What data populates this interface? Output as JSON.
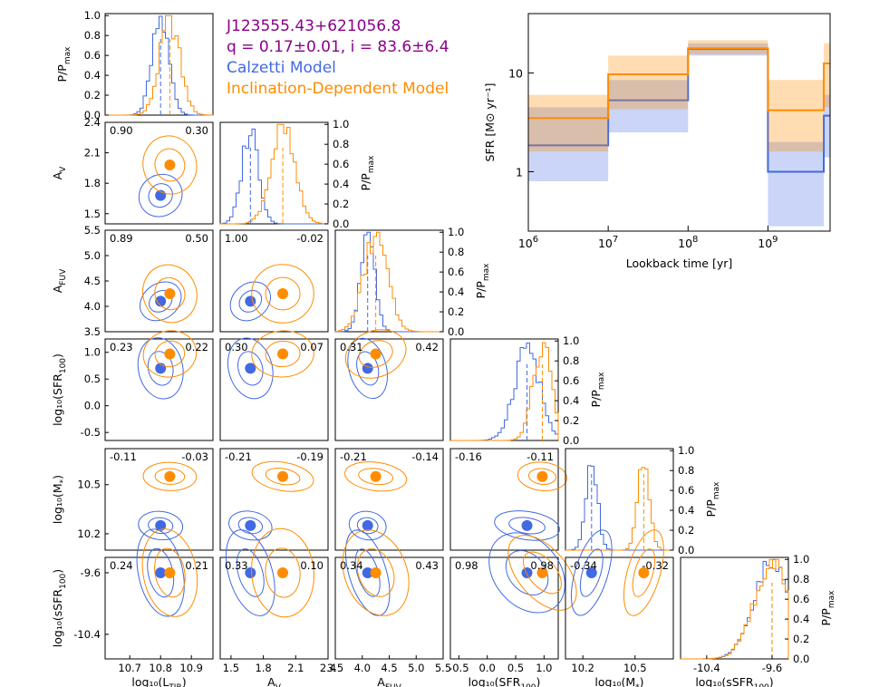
{
  "chart_data": {
    "type": "corner-plot",
    "object_name": "J123555.43+621056.8",
    "fit_params": "q = 0.17±0.01, i = 83.6±6.4",
    "legend": [
      {
        "name": "Calzetti Model",
        "color": "#4169e1"
      },
      {
        "name": "Inclination-Dependent Model",
        "color": "#ff8c00"
      }
    ],
    "colors": {
      "calzetti": "#4169e1",
      "inclination": "#ff8c00",
      "title": "#8b008b"
    },
    "hist_axis": {
      "label_main": "P/P",
      "label_sub": "max",
      "ticks": [
        "0.0",
        "0.2",
        "0.4",
        "0.6",
        "0.8",
        "1.0"
      ]
    },
    "params": [
      {
        "label": "log₁₀(L",
        "sub": "TIR",
        "close": ")",
        "range": [
          10.62,
          10.97
        ],
        "ticks": [
          {
            "v": 10.7,
            "t": "10.7"
          },
          {
            "v": 10.8,
            "t": "10.8"
          },
          {
            "v": 10.9,
            "t": "10.9"
          }
        ],
        "calzetti_median": 10.8,
        "inclination_median": 10.83,
        "calzetti_sigma": 0.025,
        "inclination_sigma": 0.03
      },
      {
        "label": "A",
        "sub": "V",
        "close": "",
        "range": [
          1.4,
          2.4
        ],
        "ticks": [
          {
            "v": 1.5,
            "t": "1.5"
          },
          {
            "v": 1.8,
            "t": "1.8"
          },
          {
            "v": 2.1,
            "t": "2.1"
          },
          {
            "v": 2.4,
            "t": "2.4"
          }
        ],
        "calzetti_median": 1.68,
        "inclination_median": 1.98,
        "calzetti_sigma": 0.07,
        "inclination_sigma": 0.1
      },
      {
        "label": "A",
        "sub": "FUV",
        "close": "",
        "range": [
          3.5,
          5.5
        ],
        "ticks": [
          {
            "v": 3.5,
            "t": "3.5"
          },
          {
            "v": 4.0,
            "t": "4.0"
          },
          {
            "v": 4.5,
            "t": "4.5"
          },
          {
            "v": 5.0,
            "t": "5.0"
          },
          {
            "v": 5.5,
            "t": "5.5"
          }
        ],
        "calzetti_median": 4.1,
        "inclination_median": 4.25,
        "calzetti_sigma": 0.12,
        "inclination_sigma": 0.2
      },
      {
        "label": "log₁₀(SFR",
        "sub": "100",
        "close": ")",
        "range": [
          -0.65,
          1.25
        ],
        "ticks": [
          {
            "v": -0.5,
            "t": "-0.5"
          },
          {
            "v": 0.0,
            "t": "0.0"
          },
          {
            "v": 0.5,
            "t": "0.5"
          },
          {
            "v": 1.0,
            "t": "1.0"
          }
        ],
        "calzetti_median": 0.7,
        "inclination_median": 0.97,
        "calzetti_sigma": 0.2,
        "inclination_sigma": 0.15
      },
      {
        "label": "log₁₀(M",
        "sub": "*",
        "close": ")",
        "range": [
          10.1,
          10.72
        ],
        "ticks": [
          {
            "v": 10.2,
            "t": "10.2"
          },
          {
            "v": 10.5,
            "t": "10.5"
          }
        ],
        "calzetti_median": 10.25,
        "inclination_median": 10.55,
        "calzetti_sigma": 0.03,
        "inclination_sigma": 0.03
      },
      {
        "label": "log₁₀(sSFR",
        "sub": "100",
        "close": ")",
        "range": [
          -10.72,
          -9.4
        ],
        "ticks": [
          {
            "v": -10.4,
            "t": "-10.4"
          },
          {
            "v": -9.6,
            "t": "-9.6"
          }
        ],
        "calzetti_median": -9.6,
        "inclination_median": -9.6,
        "calzetti_sigma": 0.2,
        "inclination_sigma": 0.2
      }
    ],
    "correlations": [
      {
        "row": 1,
        "col": 0,
        "calzetti": "0.90",
        "inclination": "0.30"
      },
      {
        "row": 2,
        "col": 0,
        "calzetti": "0.89",
        "inclination": "0.50"
      },
      {
        "row": 2,
        "col": 1,
        "calzetti": "1.00",
        "inclination": "-0.02"
      },
      {
        "row": 3,
        "col": 0,
        "calzetti": "0.23",
        "inclination": "0.22"
      },
      {
        "row": 3,
        "col": 1,
        "calzetti": "0.30",
        "inclination": "0.07"
      },
      {
        "row": 3,
        "col": 2,
        "calzetti": "0.31",
        "inclination": "0.42"
      },
      {
        "row": 4,
        "col": 0,
        "calzetti": "-0.11",
        "inclination": "-0.03"
      },
      {
        "row": 4,
        "col": 1,
        "calzetti": "-0.21",
        "inclination": "-0.19"
      },
      {
        "row": 4,
        "col": 2,
        "calzetti": "-0.21",
        "inclination": "-0.14"
      },
      {
        "row": 4,
        "col": 3,
        "calzetti": "-0.16",
        "inclination": "-0.11"
      },
      {
        "row": 5,
        "col": 0,
        "calzetti": "0.24",
        "inclination": "0.21"
      },
      {
        "row": 5,
        "col": 1,
        "calzetti": "0.33",
        "inclination": "0.10"
      },
      {
        "row": 5,
        "col": 2,
        "calzetti": "0.34",
        "inclination": "0.43"
      },
      {
        "row": 5,
        "col": 3,
        "calzetti": "0.98",
        "inclination": "0.98"
      },
      {
        "row": 5,
        "col": 4,
        "calzetti": "-0.34",
        "inclination": "-0.32"
      }
    ],
    "sfh": {
      "type": "step",
      "xlabel": "Lookback time [yr]",
      "ylabel": "SFR [M⊙ yr⁻¹]",
      "xscale": "log",
      "yscale": "log",
      "xlim": [
        1000000.0,
        6000000000.0
      ],
      "ylim": [
        0.25,
        40
      ],
      "xticks": [
        {
          "e": 6,
          "t": "10",
          "s": "6"
        },
        {
          "e": 7,
          "t": "10",
          "s": "7"
        },
        {
          "e": 8,
          "t": "10",
          "s": "8"
        },
        {
          "e": 9,
          "t": "10",
          "s": "9"
        }
      ],
      "yticks": [
        {
          "v": 1,
          "t": "1"
        },
        {
          "v": 10,
          "t": "10"
        }
      ],
      "bin_edges": [
        1000000.0,
        10000000.0,
        100000000.0,
        1000000000.0,
        5000000000.0,
        6000000000.0
      ],
      "series": [
        {
          "name": "Calzetti Model",
          "values": [
            1.85,
            5.3,
            17.5,
            1.0,
            3.7
          ],
          "lower": [
            0.8,
            2.5,
            15.0,
            0.28,
            1.4
          ],
          "upper": [
            4.5,
            8.5,
            20.0,
            2.0,
            6.0
          ]
        },
        {
          "name": "Inclination-Dependent Model",
          "values": [
            3.5,
            9.7,
            17.8,
            4.2,
            12.5
          ],
          "lower": [
            1.6,
            4.3,
            15.5,
            1.6,
            4.5
          ],
          "upper": [
            6.0,
            15.0,
            21.5,
            8.5,
            20.0
          ]
        }
      ]
    }
  }
}
